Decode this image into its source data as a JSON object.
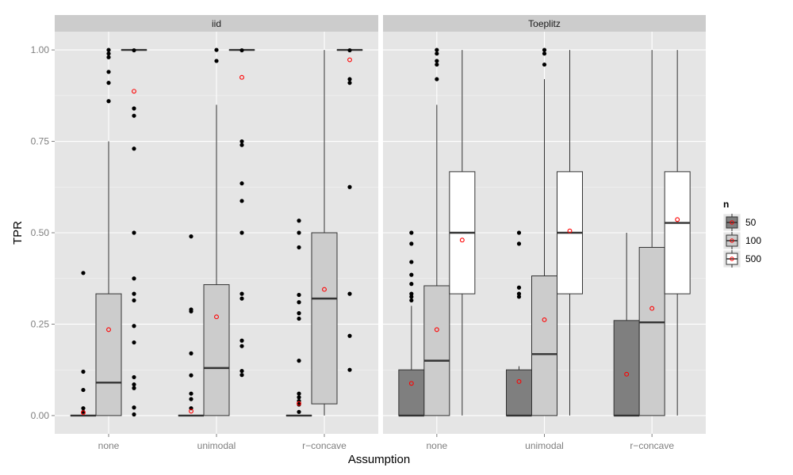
{
  "chart_data": {
    "type": "boxplot",
    "xlabel": "Assumption",
    "ylabel": "TPR",
    "ylim": [
      -0.05,
      1.05
    ],
    "y_ticks": [
      0.0,
      0.25,
      0.5,
      0.75,
      1.0
    ],
    "y_tick_labels": [
      "0.00",
      "0.25",
      "0.50",
      "0.75",
      "1.00"
    ],
    "categories": [
      "none",
      "unimodal",
      "r−concave"
    ],
    "legend": {
      "title": "n",
      "position": "right",
      "entries": [
        {
          "label": "50",
          "fill": "#7f7f7f"
        },
        {
          "label": "100",
          "fill": "#cccccc"
        },
        {
          "label": "500",
          "fill": "#ffffff"
        }
      ]
    },
    "colors": {
      "panel_bg": "#e5e5e5",
      "grid_major": "#ffffff",
      "strip_bg": "#cccccc",
      "mean_point": "#ff0000",
      "outlier": "#000000",
      "box_line": "#333333"
    },
    "panels": [
      {
        "name": "iid",
        "groups": [
          {
            "category": "none",
            "boxes": [
              {
                "n": "50",
                "q1": 0,
                "median": 0,
                "q3": 0,
                "whisker_low": 0,
                "whisker_high": 0,
                "mean": 0.008,
                "outliers": [
                  0.39,
                  0.12,
                  0.07,
                  0.02,
                  0.01
                ]
              },
              {
                "n": "100",
                "q1": 0,
                "median": 0.09,
                "q3": 0.333,
                "whisker_low": 0,
                "whisker_high": 0.75,
                "mean": 0.235,
                "outliers": [
                  1.0,
                  0.99,
                  0.98,
                  0.94,
                  0.91,
                  0.86
                ]
              },
              {
                "n": "500",
                "q1": 1.0,
                "median": 1.0,
                "q3": 1.0,
                "whisker_low": 1.0,
                "whisker_high": 1.0,
                "mean": 0.887,
                "outliers": [
                  0.999,
                  0.84,
                  0.82,
                  0.73,
                  0.5,
                  0.375,
                  0.333,
                  0.315,
                  0.245,
                  0.2,
                  0.105,
                  0.085,
                  0.075,
                  0.022,
                  0.003
                ]
              }
            ]
          },
          {
            "category": "unimodal",
            "boxes": [
              {
                "n": "50",
                "q1": 0,
                "median": 0,
                "q3": 0,
                "whisker_low": 0,
                "whisker_high": 0,
                "mean": 0.012,
                "outliers": [
                  0.49,
                  0.29,
                  0.285,
                  0.17,
                  0.11,
                  0.06,
                  0.045,
                  0.02
                ]
              },
              {
                "n": "100",
                "q1": 0,
                "median": 0.13,
                "q3": 0.358,
                "whisker_low": 0,
                "whisker_high": 0.85,
                "mean": 0.27,
                "outliers": [
                  1.0,
                  0.97
                ]
              },
              {
                "n": "500",
                "q1": 1.0,
                "median": 1.0,
                "q3": 1.0,
                "whisker_low": 1.0,
                "whisker_high": 1.0,
                "mean": 0.925,
                "outliers": [
                  0.999,
                  0.75,
                  0.74,
                  0.635,
                  0.587,
                  0.5,
                  0.333,
                  0.32,
                  0.205,
                  0.19,
                  0.122,
                  0.111
                ]
              }
            ]
          },
          {
            "category": "r−concave",
            "boxes": [
              {
                "n": "50",
                "q1": 0,
                "median": 0,
                "q3": 0,
                "whisker_low": 0,
                "whisker_high": 0,
                "mean": 0.033,
                "outliers": [
                  0.533,
                  0.5,
                  0.46,
                  0.33,
                  0.31,
                  0.28,
                  0.265,
                  0.15,
                  0.06,
                  0.05,
                  0.04,
                  0.03,
                  0.01
                ]
              },
              {
                "n": "100",
                "q1": 0.032,
                "median": 0.32,
                "q3": 0.5,
                "whisker_low": 0,
                "whisker_high": 1.0,
                "mean": 0.345,
                "outliers": []
              },
              {
                "n": "500",
                "q1": 1.0,
                "median": 1.0,
                "q3": 1.0,
                "whisker_low": 1.0,
                "whisker_high": 1.0,
                "mean": 0.973,
                "outliers": [
                  0.999,
                  0.92,
                  0.91,
                  0.625,
                  0.333,
                  0.218,
                  0.125
                ]
              }
            ]
          }
        ]
      },
      {
        "name": "Toeplitz",
        "groups": [
          {
            "category": "none",
            "boxes": [
              {
                "n": "50",
                "q1": 0,
                "median": 0,
                "q3": 0.125,
                "whisker_low": 0,
                "whisker_high": 0.3,
                "mean": 0.088,
                "outliers": [
                  0.5,
                  0.47,
                  0.42,
                  0.385,
                  0.36,
                  0.333,
                  0.325,
                  0.315
                ]
              },
              {
                "n": "100",
                "q1": 0,
                "median": 0.15,
                "q3": 0.355,
                "whisker_low": 0,
                "whisker_high": 0.85,
                "mean": 0.235,
                "outliers": [
                  1.0,
                  0.99,
                  0.97,
                  0.96,
                  0.92
                ]
              },
              {
                "n": "500",
                "q1": 0.333,
                "median": 0.5,
                "q3": 0.667,
                "whisker_low": 0,
                "whisker_high": 1.0,
                "mean": 0.48,
                "outliers": []
              }
            ]
          },
          {
            "category": "unimodal",
            "boxes": [
              {
                "n": "50",
                "q1": 0,
                "median": 0,
                "q3": 0.125,
                "whisker_low": 0,
                "whisker_high": 0.135,
                "mean": 0.093,
                "outliers": [
                  0.5,
                  0.47,
                  0.35,
                  0.333,
                  0.325
                ]
              },
              {
                "n": "100",
                "q1": 0,
                "median": 0.168,
                "q3": 0.382,
                "whisker_low": 0,
                "whisker_high": 0.92,
                "mean": 0.262,
                "outliers": [
                  1.0,
                  0.99,
                  0.96
                ]
              },
              {
                "n": "500",
                "q1": 0.333,
                "median": 0.5,
                "q3": 0.667,
                "whisker_low": 0,
                "whisker_high": 1.0,
                "mean": 0.505,
                "outliers": []
              }
            ]
          },
          {
            "category": "r−concave",
            "boxes": [
              {
                "n": "50",
                "q1": 0,
                "median": 0,
                "q3": 0.26,
                "whisker_low": 0,
                "whisker_high": 0.5,
                "mean": 0.113,
                "outliers": []
              },
              {
                "n": "100",
                "q1": 0,
                "median": 0.255,
                "q3": 0.46,
                "whisker_low": 0,
                "whisker_high": 1.0,
                "mean": 0.293,
                "outliers": []
              },
              {
                "n": "500",
                "q1": 0.333,
                "median": 0.527,
                "q3": 0.667,
                "whisker_low": 0,
                "whisker_high": 1.0,
                "mean": 0.536,
                "outliers": []
              }
            ]
          }
        ]
      }
    ]
  }
}
